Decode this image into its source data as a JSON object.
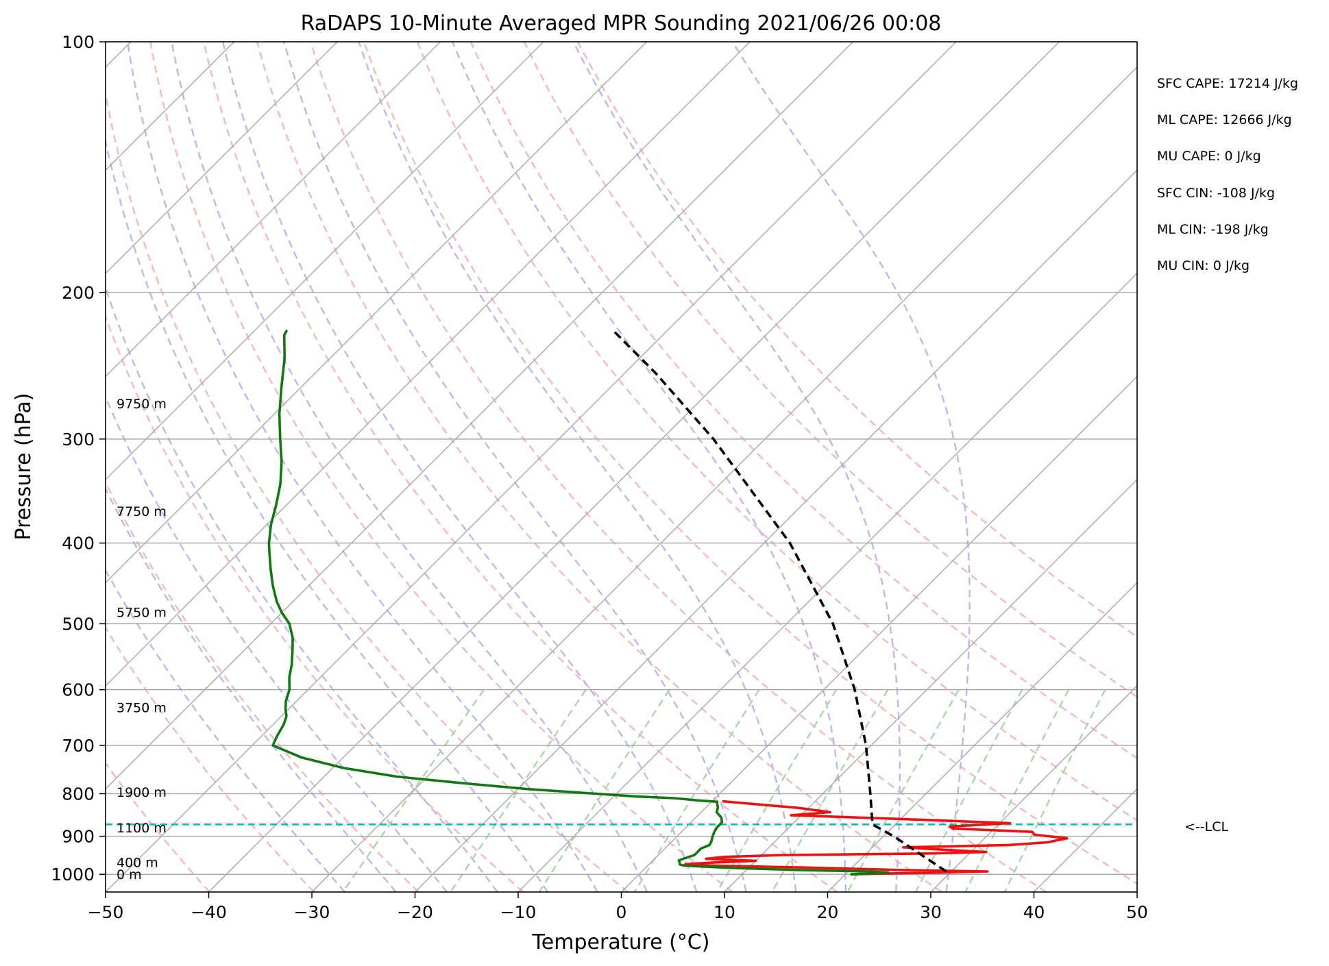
{
  "chart_data": {
    "type": "line",
    "title": "RaDAPS 10-Minute Averaged MPR Sounding 2021/06/26 00:08",
    "xlabel": "Temperature (°C)",
    "ylabel": "Pressure (hPa)",
    "xlim": [
      -50,
      50
    ],
    "ylim": [
      1050,
      100
    ],
    "y_scale": "log",
    "skew": "skew-T log-P",
    "grid": true,
    "x_ticks": [
      -50,
      -40,
      -30,
      -20,
      -10,
      0,
      10,
      20,
      30,
      40,
      50
    ],
    "x_tick_labels": [
      "−50",
      "−40",
      "−30",
      "−20",
      "−10",
      "0",
      "10",
      "20",
      "30",
      "40",
      "50"
    ],
    "y_ticks": [
      100,
      200,
      300,
      400,
      500,
      600,
      700,
      800,
      900,
      1000
    ],
    "y_tick_labels": [
      "100",
      "200",
      "300",
      "400",
      "500",
      "600",
      "700",
      "800",
      "900",
      "1000"
    ],
    "isotherms_c": [
      -140,
      -130,
      -120,
      -110,
      -100,
      -90,
      -80,
      -70,
      -60,
      -50,
      -40,
      -30,
      -20,
      -10,
      0,
      10,
      20,
      30,
      40,
      50
    ],
    "dry_adiabats_k": [
      220,
      230,
      240,
      250,
      260,
      270,
      280,
      290,
      300,
      310,
      320,
      330,
      340,
      350,
      360
    ],
    "moist_adiabats_c": [
      -30,
      -25,
      -20,
      -15,
      -10,
      -5,
      0,
      5,
      10,
      15,
      20,
      25,
      30
    ],
    "mixing_ratio_lines_gkg": [
      0.4,
      1,
      2,
      4,
      7,
      10,
      16,
      24,
      32,
      40
    ],
    "series": [
      {
        "name": "",
        "role": "temperature",
        "color": "#ee1111",
        "points": [
          [
            1000,
            20.5
          ],
          [
            995,
            28.9
          ],
          [
            992,
            33.5
          ],
          [
            988,
            25.0
          ],
          [
            983,
            18.0
          ],
          [
            978,
            10.0
          ],
          [
            975,
            4.5
          ],
          [
            972,
            3.5
          ],
          [
            968,
            6.0
          ],
          [
            963,
            10.0
          ],
          [
            958,
            5.0
          ],
          [
            953,
            6.5
          ],
          [
            948,
            12.0
          ],
          [
            944,
            26.0
          ],
          [
            940,
            31.5
          ],
          [
            934,
            27.0
          ],
          [
            928,
            23.0
          ],
          [
            922,
            33.0
          ],
          [
            915,
            36.5
          ],
          [
            905,
            38.0
          ],
          [
            896,
            34.5
          ],
          [
            889,
            34.0
          ],
          [
            881,
            26.0
          ],
          [
            876,
            25.5
          ],
          [
            868,
            31.0
          ],
          [
            858,
            20.0
          ],
          [
            849,
            9.0
          ],
          [
            842,
            12.5
          ],
          [
            832,
            9.0
          ],
          [
            817,
            1.0
          ]
        ]
      },
      {
        "name": "",
        "role": "dewpoint",
        "color": "#117711",
        "points": [
          [
            1000,
            20.5
          ],
          [
            995,
            24.0
          ],
          [
            992,
            22.0
          ],
          [
            988,
            15.0
          ],
          [
            982,
            8.0
          ],
          [
            976,
            3.5
          ],
          [
            973,
            3.0
          ],
          [
            968,
            2.8
          ],
          [
            962,
            2.5
          ],
          [
            955,
            3.0
          ],
          [
            948,
            3.5
          ],
          [
            940,
            3.5
          ],
          [
            931,
            3.5
          ],
          [
            922,
            4.0
          ],
          [
            912,
            3.8
          ],
          [
            902,
            3.5
          ],
          [
            890,
            3.2
          ],
          [
            878,
            3.0
          ],
          [
            866,
            3.0
          ],
          [
            855,
            2.5
          ],
          [
            842,
            1.5
          ],
          [
            832,
            1.2
          ],
          [
            824,
            0.8
          ],
          [
            818,
            0.5
          ],
          [
            815,
            -1.5
          ],
          [
            810,
            -4.0
          ],
          [
            806,
            -8.0
          ],
          [
            800,
            -12.0
          ],
          [
            790,
            -19.0
          ],
          [
            777,
            -26.0
          ],
          [
            763,
            -33.0
          ],
          [
            745,
            -39.0
          ],
          [
            724,
            -44.0
          ],
          [
            706,
            -47.0
          ],
          [
            700,
            -48.0
          ],
          [
            682,
            -48.5
          ],
          [
            660,
            -49.0
          ],
          [
            646,
            -49.5
          ],
          [
            633,
            -50.3
          ],
          [
            620,
            -51.0
          ],
          [
            600,
            -51.8
          ],
          [
            580,
            -53.0
          ],
          [
            560,
            -54.0
          ],
          [
            540,
            -55.2
          ],
          [
            520,
            -56.5
          ],
          [
            500,
            -58.2
          ],
          [
            485,
            -60.0
          ],
          [
            470,
            -61.6
          ],
          [
            450,
            -63.5
          ],
          [
            430,
            -65.3
          ],
          [
            410,
            -67.1
          ],
          [
            400,
            -68.0
          ],
          [
            380,
            -69.6
          ],
          [
            360,
            -71.0
          ],
          [
            340,
            -72.6
          ],
          [
            320,
            -74.6
          ],
          [
            300,
            -77.0
          ],
          [
            280,
            -79.5
          ],
          [
            260,
            -81.9
          ],
          [
            240,
            -84.4
          ],
          [
            225,
            -86.7
          ],
          [
            222,
            -86.9
          ]
        ]
      },
      {
        "name": "",
        "role": "parcel-profile",
        "color": "#000000",
        "style": "dashed",
        "points": [
          [
            992,
            29.5
          ],
          [
            900,
            21.0
          ],
          [
            880,
            18.8
          ],
          [
            871,
            17.8
          ],
          [
            800,
            14.6
          ],
          [
            700,
            9.5
          ],
          [
            600,
            3.0
          ],
          [
            500,
            -5.5
          ],
          [
            400,
            -17.5
          ],
          [
            300,
            -35.0
          ],
          [
            250,
            -47.0
          ],
          [
            223,
            -55.0
          ]
        ]
      }
    ],
    "lcl": {
      "pressure": 871,
      "label": "<--LCL",
      "color": "#11bbbb"
    },
    "height_labels": [
      {
        "pressure": 272,
        "label": "9750 m"
      },
      {
        "pressure": 366,
        "label": "7750 m"
      },
      {
        "pressure": 484,
        "label": "5750 m"
      },
      {
        "pressure": 630,
        "label": "3750 m"
      },
      {
        "pressure": 796,
        "label": "1900 m"
      },
      {
        "pressure": 879,
        "label": "1100 m"
      },
      {
        "pressure": 967,
        "label": "400 m"
      },
      {
        "pressure": 1000,
        "label": "0 m"
      }
    ],
    "annotations": [
      "SFC CAPE: 17214 J/kg",
      "ML CAPE: 12666 J/kg",
      "MU CAPE: 0 J/kg",
      "SFC CIN: -108 J/kg",
      "ML CIN: -198 J/kg",
      "MU CIN: 0 J/kg"
    ],
    "colors": {
      "isotherm": "#aaaaaa",
      "isobar": "#aaaaaa",
      "dry_adiabat": "#f7b8b8",
      "moist_adiabat": "#b8b8f2",
      "mixing_ratio": "#a8d8a8"
    }
  }
}
